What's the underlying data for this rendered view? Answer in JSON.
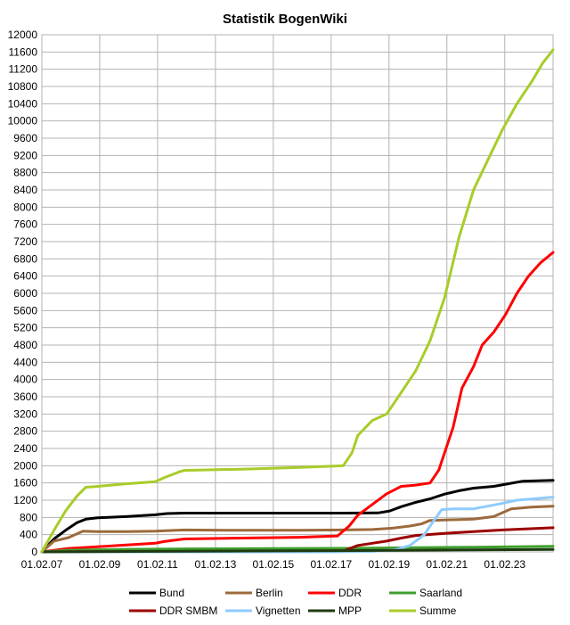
{
  "chart_data": {
    "type": "line",
    "title": "Statistik BogenWiki",
    "xlabel": "",
    "ylabel": "",
    "x_tick_labels": [
      "01.02.07",
      "01.02.09",
      "01.02.11",
      "01.02.13",
      "01.02.15",
      "01.02.17",
      "01.02.19",
      "01.02.21",
      "01.02.23"
    ],
    "x_tick_years": [
      2007.08,
      2009.08,
      2011.08,
      2013.08,
      2015.08,
      2017.08,
      2019.08,
      2021.08,
      2023.08
    ],
    "xlim": [
      2007.08,
      2024.75
    ],
    "ylim": [
      0,
      12000
    ],
    "y_ticks": [
      0,
      400,
      800,
      1200,
      1600,
      2000,
      2400,
      2800,
      3200,
      3600,
      4000,
      4400,
      4800,
      5200,
      5600,
      6000,
      6400,
      6800,
      7200,
      7600,
      8000,
      8400,
      8800,
      9200,
      9600,
      10000,
      10400,
      10800,
      11200,
      11600,
      12000
    ],
    "grid": true,
    "legend_position": "bottom",
    "series": [
      {
        "name": "Bund",
        "color": "#000000",
        "x": [
          2007.08,
          2007.5,
          2007.9,
          2008.3,
          2008.6,
          2009,
          2010,
          2011,
          2011.4,
          2012,
          2014,
          2016,
          2017.5,
          2018.7,
          2019.1,
          2019.5,
          2020,
          2020.5,
          2021,
          2021.5,
          2022,
          2022.7,
          2023.2,
          2023.7,
          2024.75
        ],
        "values": [
          0,
          300,
          500,
          680,
          760,
          790,
          820,
          860,
          890,
          900,
          900,
          900,
          900,
          905,
          950,
          1050,
          1150,
          1230,
          1340,
          1420,
          1480,
          1520,
          1580,
          1640,
          1660
        ]
      },
      {
        "name": "Berlin",
        "color": "#9c6a3c",
        "x": [
          2007.08,
          2007.5,
          2008,
          2008.5,
          2009,
          2010,
          2011,
          2012,
          2014,
          2016,
          2017.5,
          2018.5,
          2019.2,
          2019.8,
          2020.2,
          2020.5,
          2021,
          2022,
          2022.7,
          2023.3,
          2024,
          2024.75
        ],
        "values": [
          0,
          250,
          330,
          480,
          470,
          470,
          480,
          510,
          500,
          500,
          510,
          520,
          550,
          600,
          650,
          730,
          740,
          760,
          820,
          1000,
          1040,
          1060
        ]
      },
      {
        "name": "DDR",
        "color": "#ff0000",
        "x": [
          2007.08,
          2008,
          2009,
          2010,
          2011,
          2011.3,
          2012,
          2014,
          2016,
          2017.3,
          2017.7,
          2018,
          2018.5,
          2019,
          2019.5,
          2020,
          2020.5,
          2020.8,
          2021,
          2021.3,
          2021.6,
          2022,
          2022.3,
          2022.7,
          2023.1,
          2023.5,
          2023.9,
          2024.3,
          2024.75
        ],
        "values": [
          0,
          80,
          120,
          160,
          200,
          240,
          300,
          320,
          340,
          370,
          600,
          850,
          1100,
          1350,
          1520,
          1550,
          1600,
          1900,
          2300,
          2900,
          3800,
          4300,
          4800,
          5100,
          5500,
          6000,
          6400,
          6700,
          6950
        ]
      },
      {
        "name": "Saarland",
        "color": "#3f9e2e",
        "x": [
          2007.08,
          2008,
          2010,
          2012,
          2014,
          2016,
          2018,
          2020,
          2022,
          2024.75
        ],
        "values": [
          0,
          40,
          60,
          70,
          75,
          80,
          85,
          100,
          110,
          130
        ]
      },
      {
        "name": "DDR SMBM",
        "color": "#9b0000",
        "x": [
          2007.08,
          2009,
          2012,
          2015,
          2017.5,
          2018,
          2018.5,
          2019,
          2019.5,
          2020,
          2021,
          2022,
          2023,
          2024.75
        ],
        "values": [
          0,
          5,
          10,
          15,
          20,
          150,
          200,
          250,
          320,
          380,
          430,
          470,
          510,
          560
        ]
      },
      {
        "name": "Vignetten",
        "color": "#8ecbff",
        "x": [
          2007.08,
          2012,
          2017,
          2018.5,
          2019.3,
          2019.8,
          2020.3,
          2020.6,
          2020.9,
          2021.3,
          2022,
          2022.8,
          2023.5,
          2024.75
        ],
        "values": [
          0,
          0,
          0,
          10,
          50,
          150,
          400,
          700,
          980,
          1000,
          1000,
          1100,
          1200,
          1270
        ]
      },
      {
        "name": "MPP",
        "color": "#1e3a10",
        "x": [
          2007.08,
          2010,
          2014,
          2018,
          2022,
          2024.75
        ],
        "values": [
          0,
          10,
          20,
          30,
          45,
          55
        ]
      },
      {
        "name": "Summe",
        "color": "#a8cc2a",
        "x": [
          2007.08,
          2007.5,
          2007.9,
          2008.3,
          2008.6,
          2009,
          2010,
          2011,
          2011.3,
          2011.8,
          2012,
          2014,
          2016,
          2017.5,
          2017.8,
          2018,
          2018.5,
          2019,
          2019.5,
          2020,
          2020.5,
          2021,
          2021.5,
          2022,
          2022.5,
          2023,
          2023.5,
          2024,
          2024.4,
          2024.75
        ],
        "values": [
          0,
          500,
          950,
          1300,
          1500,
          1520,
          1580,
          1630,
          1720,
          1850,
          1890,
          1920,
          1960,
          2000,
          2300,
          2700,
          3050,
          3200,
          3700,
          4200,
          4900,
          5900,
          7300,
          8400,
          9100,
          9800,
          10400,
          10900,
          11350,
          11650
        ]
      }
    ],
    "legend_rows": [
      [
        "Bund",
        "Berlin",
        "DDR",
        "Saarland"
      ],
      [
        "DDR SMBM",
        "Vignetten",
        "MPP",
        "Summe"
      ]
    ]
  }
}
